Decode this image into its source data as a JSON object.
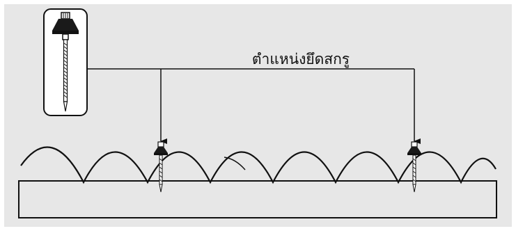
{
  "diagram": {
    "label": "ตำแหน่งยึดสกรู",
    "colors": {
      "background": "#e7e7e7",
      "stroke": "#111111",
      "beam_fill": "#e7e7e7",
      "inset_fill": "#ffffff",
      "screw_cap": "#1a1a1a"
    },
    "icons": [
      "roofing-screw-icon",
      "corrugated-sheet",
      "support-beam"
    ]
  }
}
